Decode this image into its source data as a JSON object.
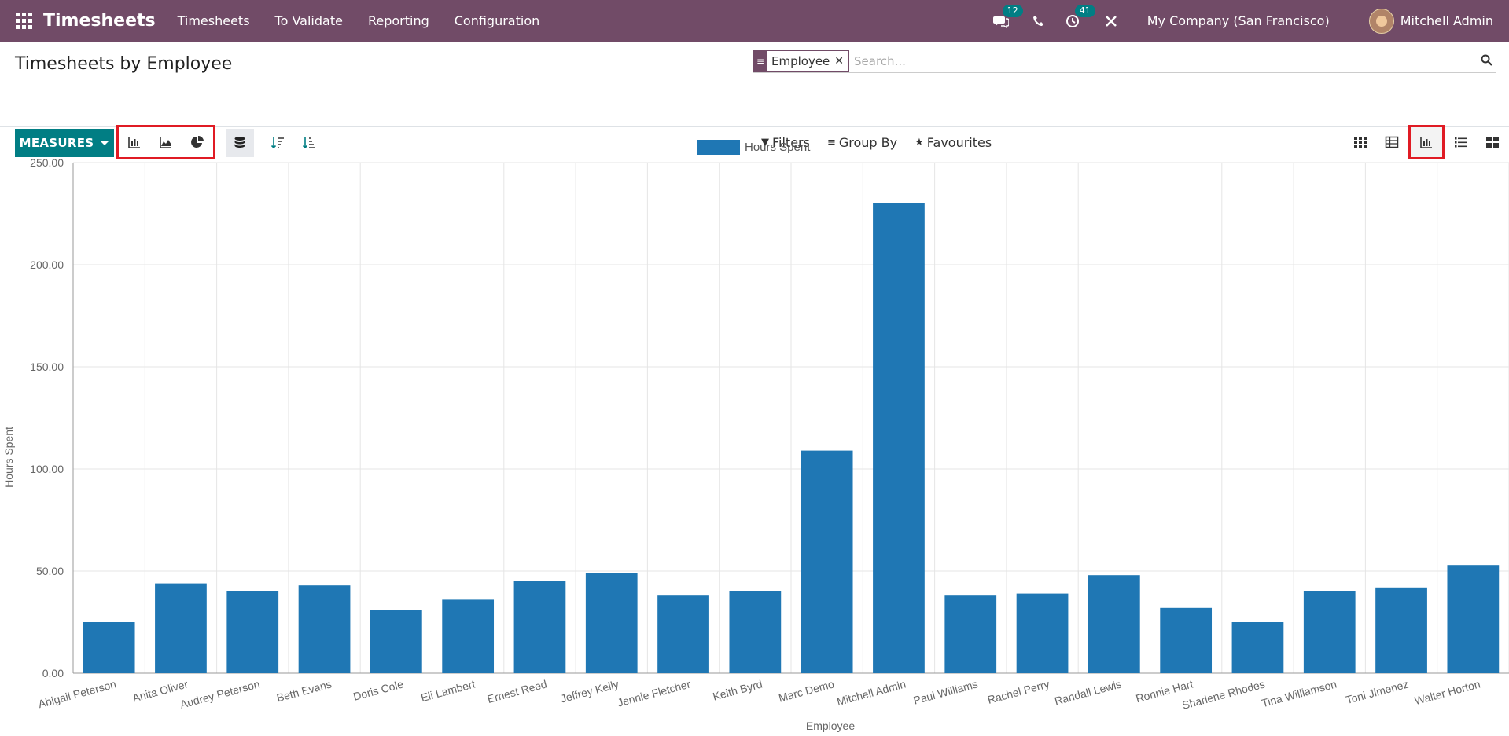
{
  "navbar": {
    "brand": "Timesheets",
    "menu": [
      "Timesheets",
      "To Validate",
      "Reporting",
      "Configuration"
    ],
    "messages_badge": "12",
    "activities_badge": "41",
    "company": "My Company (San Francisco)",
    "user": "Mitchell Admin"
  },
  "control": {
    "title": "Timesheets by Employee",
    "facet_label": "Employee",
    "search_placeholder": "Search...",
    "measures_label": "MEASURES",
    "filters_label": "Filters",
    "groupby_label": "Group By",
    "favourites_label": "Favourites"
  },
  "colors": {
    "brand": "#714B67",
    "accent": "#017e84",
    "bar": "#1f77b4",
    "highlight": "#e01b24"
  },
  "chart_data": {
    "type": "bar",
    "categories": [
      "Abigail Peterson",
      "Anita Oliver",
      "Audrey Peterson",
      "Beth Evans",
      "Doris Cole",
      "Eli Lambert",
      "Ernest Reed",
      "Jeffrey Kelly",
      "Jennie Fletcher",
      "Keith Byrd",
      "Marc Demo",
      "Mitchell Admin",
      "Paul Williams",
      "Rachel Perry",
      "Randall Lewis",
      "Ronnie Hart",
      "Sharlene Rhodes",
      "Tina Williamson",
      "Toni Jimenez",
      "Walter Horton"
    ],
    "series": [
      {
        "name": "Hours Spent",
        "values": [
          25,
          44,
          40,
          43,
          31,
          36,
          45,
          49,
          38,
          40,
          109,
          230,
          38,
          39,
          48,
          32,
          25,
          40,
          42,
          53
        ]
      }
    ],
    "xlabel": "Employee",
    "ylabel": "Hours Spent",
    "ylim": [
      0,
      250
    ],
    "yticks": [
      "0.00",
      "50.00",
      "100.00",
      "150.00",
      "200.00",
      "250.00"
    ],
    "grid": true,
    "legend": "top-center"
  }
}
